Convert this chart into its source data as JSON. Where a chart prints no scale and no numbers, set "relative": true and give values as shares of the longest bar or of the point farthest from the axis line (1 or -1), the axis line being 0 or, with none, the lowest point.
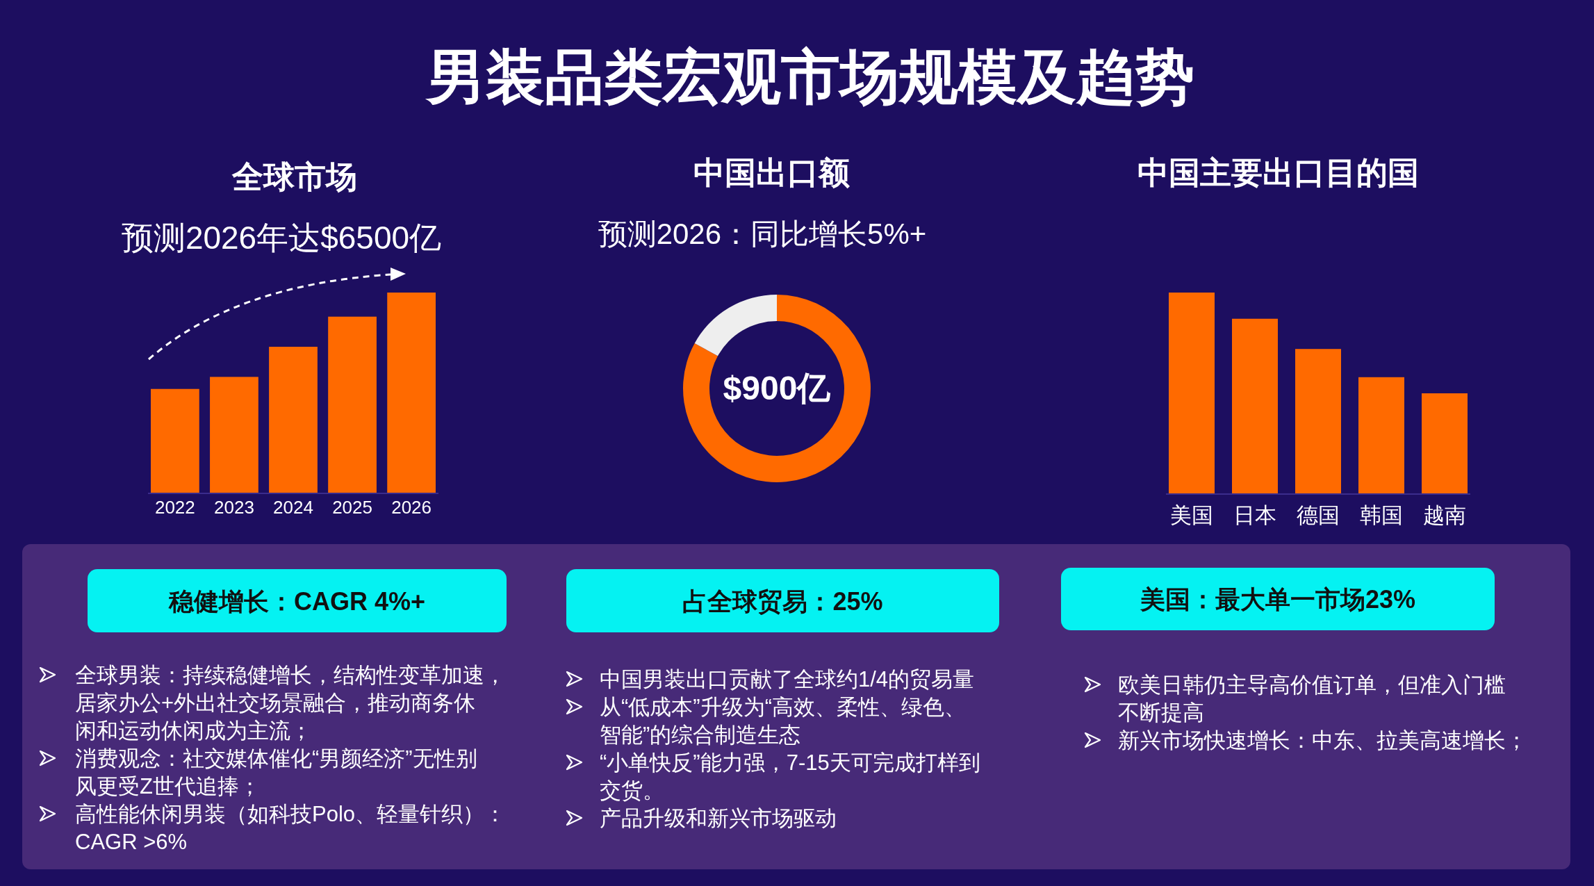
{
  "chart_data": [
    {
      "type": "other",
      "title": "男装品类宏观市场规模及趋势"
    },
    {
      "type": "bar",
      "title": "全球市场",
      "subtitle": "预测2026年达$6500亿",
      "categories": [
        "2022",
        "2023",
        "2024",
        "2025",
        "2026"
      ],
      "values": [
        0.52,
        0.58,
        0.73,
        0.88,
        1
      ],
      "color": "#ff6a00",
      "relative": true
    },
    {
      "type": "donut",
      "title": "中国出口额",
      "subtitle": "预测2026：同比增长5%+",
      "categories": [
        null,
        null
      ],
      "values": [
        83,
        17
      ],
      "colors": [
        "#ff6a00",
        "#eeeeee"
      ],
      "annotations": [
        "$900亿"
      ]
    },
    {
      "type": "bar",
      "title": "中国主要出口目的国",
      "categories": [
        "美国",
        "日本",
        "德国",
        "韩国",
        "越南"
      ],
      "values": [
        1,
        0.87,
        0.72,
        0.58,
        0.5
      ],
      "color": "#ff6a00",
      "relative": true
    },
    {
      "type": "other",
      "title": "稳健增长：CAGR 4%+",
      "annotations": [
        "全球男装：持续稳健增长，结构性变革加速，居家办公+外出社交场景融合，推动商务休闲和运动休闲成为主流；",
        "消费观念：社交媒体催化“男颜经济”无性别风更受Z世代追捧；",
        "高性能休闲男装（如科技Polo、轻量针织）：CAGR >6%"
      ]
    },
    {
      "type": "other",
      "title": "占全球贸易：25%",
      "annotations": [
        "中国男装出口贡献了全球约1/4的贸易量",
        "从“低成本”升级为“高效、柔性、绿色、智能”的综合制造生态",
        "“小单快反”能力强，7-15天可完成打样到交货。",
        "产品升级和新兴市场驱动"
      ]
    },
    {
      "type": "other",
      "title": "美国：最大单一市场23%",
      "annotations": [
        "欧美日韩仍主导高价值订单，但准入门槛不断提高",
        "新兴市场快速增长：中东、拉美高速增长；"
      ]
    }
  ]
}
